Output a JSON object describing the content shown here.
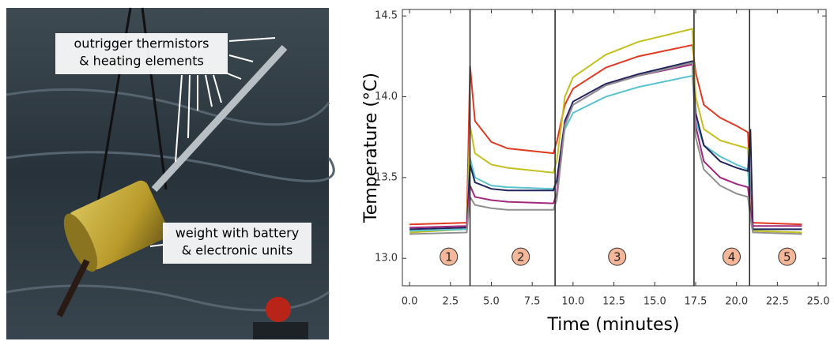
{
  "photo": {
    "annotations": [
      {
        "lines": [
          "outrigger thermistors",
          "& heating elements"
        ]
      },
      {
        "lines": [
          "weight with battery",
          "& electronic units"
        ]
      }
    ]
  },
  "chart_data": {
    "type": "line",
    "x_label": "Time (minutes)",
    "y_label": "Temperature (°C)",
    "xlim": [
      -0.44,
      25.48
    ],
    "ylim": [
      12.83,
      14.54
    ],
    "xticks": [
      {
        "value": 0,
        "label": "0.0"
      },
      {
        "value": 2.5,
        "label": "2.5"
      },
      {
        "value": 5,
        "label": "5.0"
      },
      {
        "value": 7.5,
        "label": "7.5"
      },
      {
        "value": 10,
        "label": "10.0"
      },
      {
        "value": 12.5,
        "label": "12.5"
      },
      {
        "value": 15,
        "label": "15.0"
      },
      {
        "value": 17.5,
        "label": "17.5"
      },
      {
        "value": 20,
        "label": "20.0"
      },
      {
        "value": 22.5,
        "label": "22.5"
      },
      {
        "value": 25,
        "label": "25.0"
      }
    ],
    "yticks": [
      {
        "value": 13,
        "label": "13.0"
      },
      {
        "value": 13.5,
        "label": "13.5"
      },
      {
        "value": 14,
        "label": "14.0"
      },
      {
        "value": 14.5,
        "label": "14.5"
      }
    ],
    "x": [
      0,
      3.5,
      3.7,
      4,
      5,
      6,
      8.8,
      9,
      9.5,
      10,
      12,
      14,
      17.3,
      17.5,
      18,
      19,
      20,
      20.7,
      20.85,
      21,
      24
    ],
    "series": [
      {
        "color": "#e03a22",
        "values": [
          13.21,
          13.22,
          14.19,
          13.85,
          13.72,
          13.68,
          13.65,
          13.72,
          13.95,
          14.05,
          14.18,
          14.25,
          14.32,
          14.15,
          13.95,
          13.87,
          13.82,
          13.78,
          13.4,
          13.22,
          13.21
        ]
      },
      {
        "color": "#c4bf1e",
        "values": [
          13.16,
          13.18,
          13.82,
          13.65,
          13.58,
          13.56,
          13.53,
          13.6,
          14.0,
          14.12,
          14.26,
          14.34,
          14.42,
          14.0,
          13.8,
          13.73,
          13.7,
          13.68,
          13.3,
          13.17,
          13.16
        ]
      },
      {
        "color": "#58c2cf",
        "values": [
          13.17,
          13.18,
          13.62,
          13.5,
          13.45,
          13.44,
          13.43,
          13.48,
          13.8,
          13.9,
          14.0,
          14.06,
          14.13,
          13.85,
          13.7,
          13.63,
          13.58,
          13.55,
          13.3,
          13.18,
          13.18
        ]
      },
      {
        "color": "#22245e",
        "values": [
          13.18,
          13.19,
          13.58,
          13.47,
          13.43,
          13.42,
          13.42,
          13.48,
          13.85,
          13.97,
          14.08,
          14.14,
          14.22,
          13.9,
          13.7,
          13.6,
          13.56,
          13.54,
          13.8,
          13.18,
          13.18
        ]
      },
      {
        "color": "#a0287e",
        "values": [
          13.19,
          13.2,
          13.45,
          13.38,
          13.36,
          13.35,
          13.34,
          13.4,
          13.83,
          13.95,
          14.07,
          14.13,
          14.2,
          13.82,
          13.6,
          13.5,
          13.46,
          13.44,
          13.3,
          13.2,
          13.2
        ]
      },
      {
        "color": "#8f8f8f",
        "values": [
          13.15,
          13.16,
          13.38,
          13.33,
          13.31,
          13.3,
          13.3,
          13.36,
          13.82,
          13.95,
          14.07,
          14.13,
          14.21,
          13.75,
          13.55,
          13.45,
          13.4,
          13.38,
          13.25,
          13.16,
          13.15
        ]
      }
    ],
    "phase_boundaries": [
      3.7,
      8.9,
      17.4,
      20.8
    ],
    "phases": [
      {
        "label": "1",
        "x": 2.4
      },
      {
        "label": "2",
        "x": 6.8
      },
      {
        "label": "3",
        "x": 12.7
      },
      {
        "label": "4",
        "x": 19.7
      },
      {
        "label": "5",
        "x": 23.1
      }
    ],
    "phase_label_y": 13.01
  }
}
